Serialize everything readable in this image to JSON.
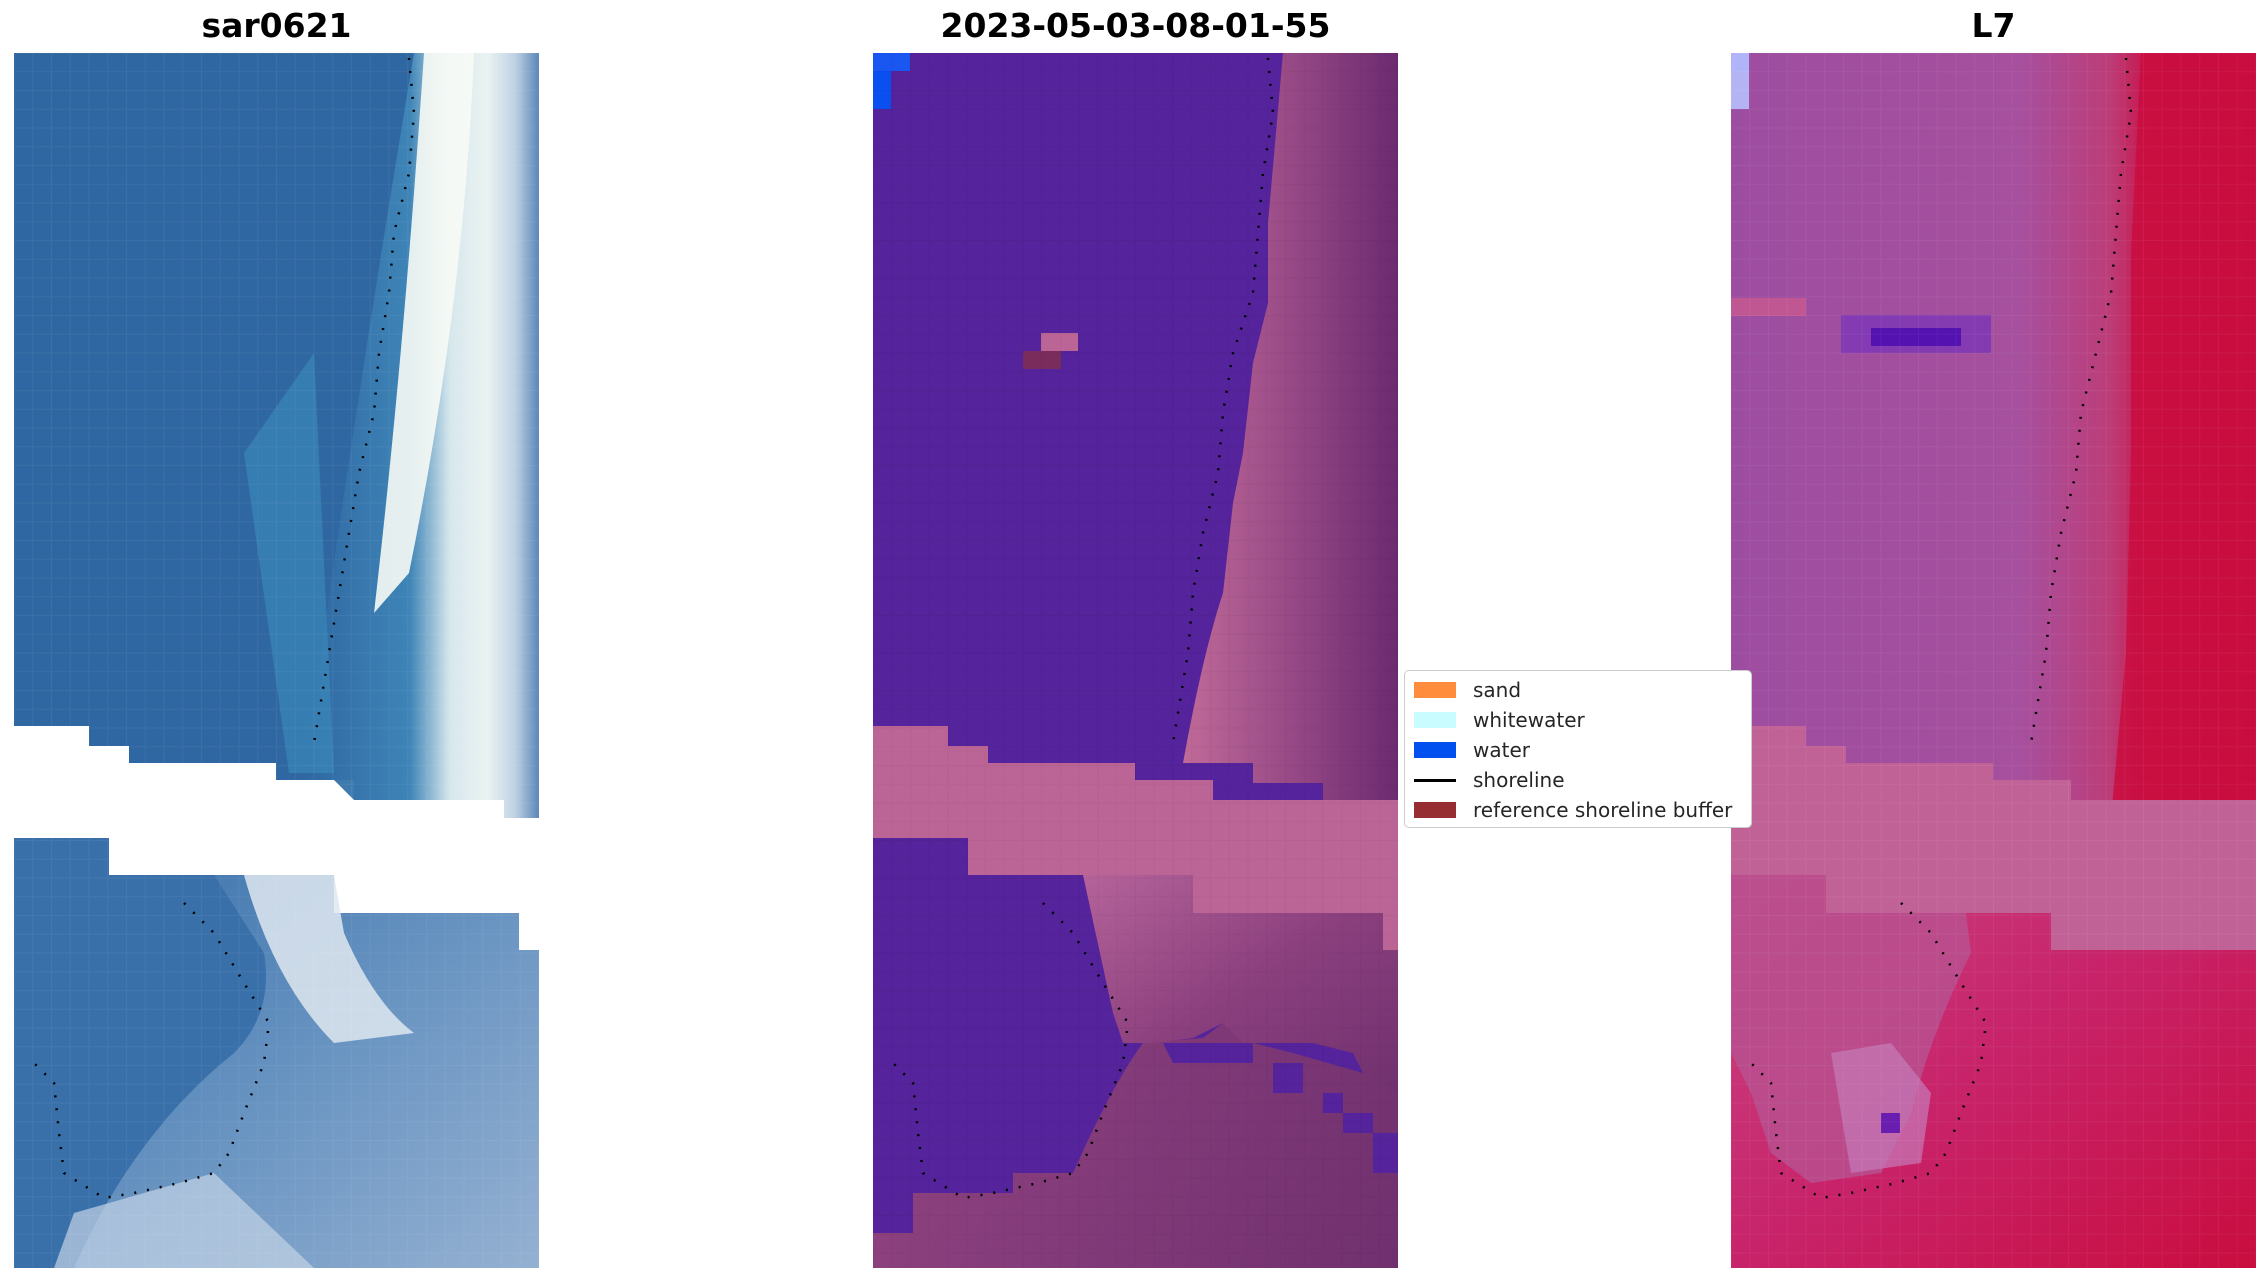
{
  "titles": {
    "left": "sar0621",
    "center": "2023-05-03-08-01-55",
    "right": "L7"
  },
  "legend": [
    {
      "label": "sand",
      "color": "#ff8c3c",
      "type": "patch"
    },
    {
      "label": "whitewater",
      "color": "#c8fcff",
      "type": "patch"
    },
    {
      "label": "water",
      "color": "#0050f0",
      "type": "patch"
    },
    {
      "label": "shoreline",
      "color": "#000000",
      "type": "line"
    },
    {
      "label": "reference shoreline buffer",
      "color": "#962d32",
      "type": "patch"
    }
  ],
  "colors": {
    "rgb_water": "#2f67a2",
    "rgb_surf": "#eef6f2",
    "class_water": "#55239b",
    "class_buffer": "#bb6596",
    "class_land": "#7b3373",
    "index_land": "#9c4e9e",
    "index_sea": "#c90d3f"
  }
}
